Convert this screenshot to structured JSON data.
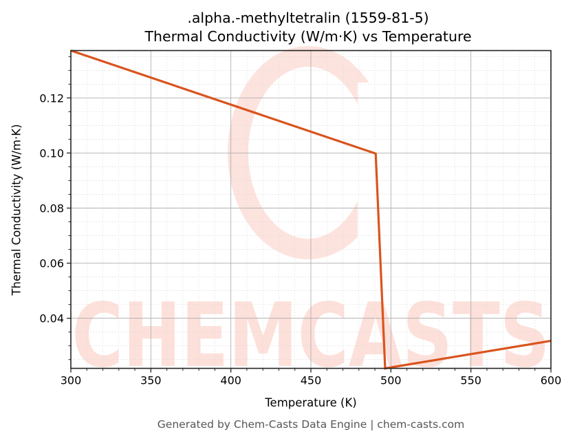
{
  "chart": {
    "title_line1": ".alpha.-methyltetralin (1559-81-5)",
    "title_line2": "Thermal Conductivity (W/m·K) vs Temperature",
    "xlabel": "Temperature (K)",
    "ylabel": "Thermal Conductivity (W/m·K)",
    "footer": "Generated by Chem-Casts Data Engine | chem-casts.com",
    "watermark": "CHEMCASTS",
    "line_color": "#d9541e",
    "watermark_color": "#fde0da"
  },
  "chart_data": {
    "type": "line",
    "title": ".alpha.-methyltetralin (1559-81-5) Thermal Conductivity (W/m·K) vs Temperature",
    "xlabel": "Temperature (K)",
    "ylabel": "Thermal Conductivity (W/m·K)",
    "xlim": [
      300,
      600
    ],
    "ylim": [
      0.0218,
      0.1372
    ],
    "xticks": [
      300,
      350,
      400,
      450,
      500,
      550,
      600
    ],
    "yticks": [
      0.04,
      0.06,
      0.08,
      0.1,
      0.12
    ],
    "xtick_labels": [
      "300",
      "350",
      "400",
      "450",
      "500",
      "550",
      "600"
    ],
    "ytick_labels": [
      "0.04",
      "0.06",
      "0.08",
      "0.10",
      "0.12"
    ],
    "grid": true,
    "minor_grid": true,
    "legend": null,
    "series": [
      {
        "name": "Thermal Conductivity",
        "x": [
          300,
          490.5,
          496.4,
          600
        ],
        "y": [
          0.1372,
          0.0998,
          0.0218,
          0.0318
        ]
      }
    ]
  }
}
